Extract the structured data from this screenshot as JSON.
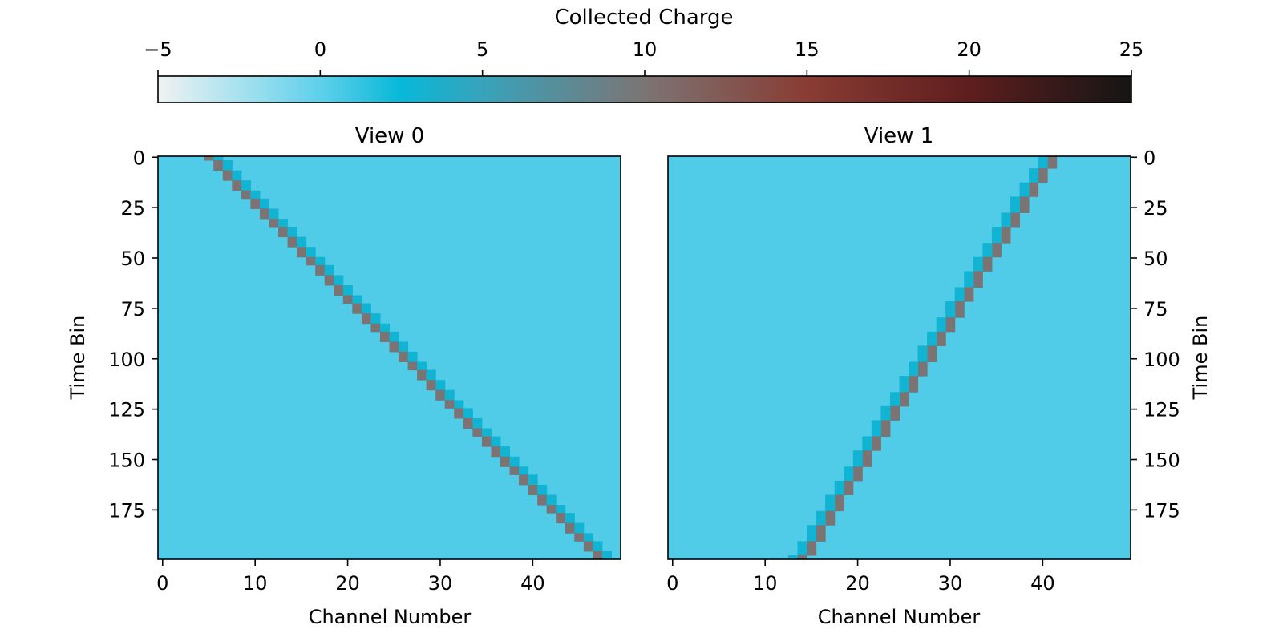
{
  "colorbar": {
    "label": "Collected Charge",
    "range": [
      -5,
      25
    ],
    "ticks": [
      -5,
      0,
      5,
      10,
      15,
      20,
      25
    ],
    "tick_labels": [
      "−5",
      "0",
      "5",
      "10",
      "15",
      "20",
      "25"
    ],
    "colormap": [
      {
        "value": -5,
        "color": "#f0f2f3"
      },
      {
        "value": 0,
        "color": "#5fd0eb"
      },
      {
        "value": 2.5,
        "color": "#07b8d8"
      },
      {
        "value": 5,
        "color": "#38a3bb"
      },
      {
        "value": 10,
        "color": "#7c7474"
      },
      {
        "value": 15,
        "color": "#883c33"
      },
      {
        "value": 20,
        "color": "#5e1e1e"
      },
      {
        "value": 25,
        "color": "#151515"
      }
    ]
  },
  "chart_data": [
    {
      "type": "heatmap",
      "title": "View 0",
      "xlabel": "Channel Number",
      "ylabel": "Time Bin",
      "ylabel_side": "left",
      "channels": 50,
      "time_bins": 200,
      "xlim": [
        -0.5,
        49.5
      ],
      "ylim": [
        199.5,
        -0.5
      ],
      "x_ticks": [
        0,
        10,
        20,
        30,
        40
      ],
      "y_ticks": [
        0,
        25,
        50,
        75,
        100,
        125,
        150,
        175
      ],
      "background_value": 0.4,
      "track_value": 10,
      "track_edge_value": 3,
      "track_centerline": {
        "channel_at_time_0": 5.1,
        "channel_at_time_199": 47.2
      }
    },
    {
      "type": "heatmap",
      "title": "View 1",
      "xlabel": "Channel Number",
      "ylabel": "Time Bin",
      "ylabel_side": "right",
      "channels": 50,
      "time_bins": 200,
      "xlim": [
        -0.5,
        49.5
      ],
      "ylim": [
        199.5,
        -0.5
      ],
      "x_ticks": [
        0,
        10,
        20,
        30,
        40
      ],
      "y_ticks": [
        0,
        25,
        50,
        75,
        100,
        125,
        150,
        175
      ],
      "background_value": 0.4,
      "track_value": 10,
      "track_edge_value": 3,
      "track_centerline": {
        "channel_at_time_0": 41.2,
        "channel_at_time_199": 14.3
      }
    }
  ]
}
